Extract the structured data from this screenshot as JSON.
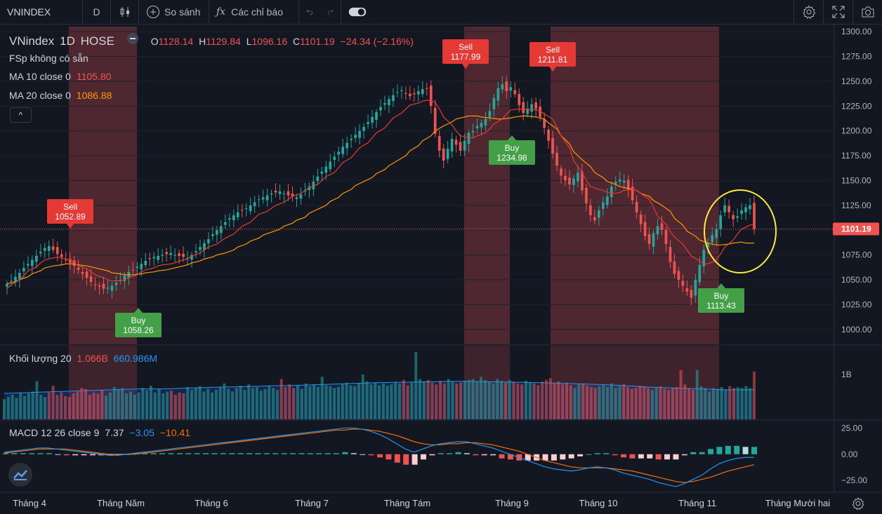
{
  "toolbar": {
    "symbol": "VNINDEX",
    "interval": "D",
    "compare_label": "So sánh",
    "indicators_label": "Các chỉ báo"
  },
  "legend": {
    "symbol": "VNindex",
    "interval": "1D",
    "exchange": "HOSE",
    "ohlc": {
      "o_label": "O",
      "o": "1128.14",
      "h_label": "H",
      "h": "1129.84",
      "l_label": "L",
      "l": "1096.16",
      "c_label": "C",
      "c": "1101.19",
      "chg": "−24.34 (−2.16%)"
    },
    "fsp": "FSp  không có sẵn",
    "ma10_label": "MA 10 close 0",
    "ma10_value": "1105.80",
    "ma20_label": "MA 20 close 0",
    "ma20_value": "1086.88",
    "collapse_glyph": "^"
  },
  "volume_legend": {
    "label": "Khối lượng 20",
    "v1": "1.066B",
    "v2": "660.986M"
  },
  "macd_legend": {
    "label": "MACD 12 26 close 9",
    "v1": "7.37",
    "v2": "−3.05",
    "v3": "−10.41"
  },
  "colors": {
    "up": "#26a69a",
    "down": "#ef5350",
    "bg": "#131722",
    "band": "#5b2a33",
    "ma10": "#e53935",
    "ma20": "#ff9800",
    "macd": "#2196f3",
    "signal": "#ff6d00",
    "buy": "#43a047",
    "sell": "#e53935",
    "circle": "#ffeb3b"
  },
  "chart_data": [
    {
      "type": "candlestick",
      "title": "VNindex · 1D · HOSE",
      "ylim": [
        985,
        1305
      ],
      "y_ticks": [
        "1300.00",
        "1275.00",
        "1250.00",
        "1225.00",
        "1200.00",
        "1175.00",
        "1150.00",
        "1125.00",
        "1100.00",
        "1075.00",
        "1050.00",
        "1025.00",
        "1000.00"
      ],
      "last_price": "1101.19",
      "x_ticks": [
        "Tháng 4",
        "Tháng Năm",
        "Tháng 6",
        "Tháng 7",
        "Tháng Tám",
        "Tháng 9",
        "Tháng 10",
        "Tháng 11",
        "Tháng Mười hai"
      ],
      "closes": [
        1046,
        1049,
        1053,
        1057,
        1062,
        1066,
        1070,
        1074,
        1078,
        1082,
        1084,
        1080,
        1076,
        1073,
        1070,
        1067,
        1064,
        1060,
        1056,
        1052,
        1048,
        1045,
        1043,
        1041,
        1042,
        1044,
        1047,
        1050,
        1054,
        1058,
        1060,
        1063,
        1066,
        1069,
        1071,
        1073,
        1074,
        1075,
        1076,
        1077,
        1075,
        1074,
        1073,
        1072,
        1075,
        1079,
        1083,
        1087,
        1091,
        1096,
        1100,
        1104,
        1108,
        1112,
        1115,
        1118,
        1120,
        1122,
        1125,
        1128,
        1131,
        1133,
        1135,
        1137,
        1138,
        1139,
        1137,
        1135,
        1134,
        1133,
        1136,
        1140,
        1144,
        1149,
        1154,
        1159,
        1164,
        1169,
        1174,
        1179,
        1184,
        1188,
        1192,
        1196,
        1200,
        1204,
        1209,
        1214,
        1219,
        1224,
        1228,
        1232,
        1236,
        1239,
        1241,
        1238,
        1235,
        1237,
        1240,
        1242,
        1243,
        1225,
        1197,
        1180,
        1170,
        1182,
        1192,
        1186,
        1180,
        1190,
        1198,
        1200,
        1205,
        1208,
        1212,
        1220,
        1233,
        1243,
        1247,
        1240,
        1244,
        1237,
        1226,
        1218,
        1222,
        1227,
        1222,
        1214,
        1203,
        1190,
        1177,
        1165,
        1155,
        1150,
        1146,
        1152,
        1158,
        1140,
        1127,
        1115,
        1110,
        1120,
        1128,
        1134,
        1144,
        1149,
        1151,
        1150,
        1141,
        1130,
        1118,
        1106,
        1094,
        1086,
        1097,
        1104,
        1100,
        1086,
        1068,
        1056,
        1050,
        1044,
        1038,
        1032,
        1050,
        1065,
        1080,
        1087,
        1095,
        1101,
        1115,
        1125,
        1118,
        1111,
        1114,
        1120,
        1123,
        1125,
        1101
      ],
      "ma10": [
        1041,
        1045,
        1050,
        1054,
        1059,
        1063,
        1067,
        1070,
        1072,
        1073,
        1072,
        1070,
        1067,
        1064,
        1061,
        1058,
        1055,
        1052,
        1050,
        1049,
        1049,
        1050,
        1052,
        1055,
        1058,
        1060,
        1062,
        1064,
        1065,
        1066,
        1067,
        1069,
        1071,
        1074,
        1077,
        1080,
        1083,
        1086,
        1089,
        1092,
        1096,
        1100,
        1104,
        1108,
        1112,
        1116,
        1119,
        1122,
        1125,
        1128,
        1131,
        1134,
        1137,
        1140,
        1143,
        1146,
        1150,
        1154,
        1158,
        1163,
        1168,
        1173,
        1178,
        1183,
        1188,
        1193,
        1198,
        1203,
        1208,
        1213,
        1218,
        1222,
        1226,
        1228,
        1230,
        1231,
        1229,
        1222,
        1214,
        1206,
        1200,
        1195,
        1193,
        1193,
        1195,
        1198,
        1202,
        1207,
        1212,
        1217,
        1221,
        1222,
        1222,
        1222,
        1221,
        1220,
        1217,
        1212,
        1204,
        1195,
        1183,
        1170,
        1158,
        1150,
        1144,
        1141,
        1140,
        1138,
        1137,
        1138,
        1140,
        1141,
        1140,
        1137,
        1131,
        1123,
        1114,
        1106,
        1099,
        1093,
        1086,
        1080,
        1074,
        1069,
        1066,
        1066,
        1070,
        1076,
        1083,
        1090,
        1096,
        1101,
        1105,
        1106
      ],
      "ma20": [
        1046,
        1048,
        1050,
        1053,
        1056,
        1059,
        1062,
        1064,
        1065,
        1066,
        1066,
        1065,
        1064,
        1063,
        1061,
        1059,
        1057,
        1056,
        1055,
        1055,
        1056,
        1057,
        1058,
        1059,
        1060,
        1061,
        1063,
        1065,
        1067,
        1069,
        1071,
        1073,
        1075,
        1077,
        1080,
        1083,
        1086,
        1089,
        1092,
        1095,
        1098,
        1101,
        1104,
        1107,
        1110,
        1113,
        1117,
        1121,
        1125,
        1129,
        1133,
        1137,
        1141,
        1145,
        1149,
        1153,
        1157,
        1161,
        1165,
        1170,
        1175,
        1180,
        1185,
        1190,
        1195,
        1200,
        1205,
        1209,
        1212,
        1214,
        1215,
        1215,
        1214,
        1213,
        1212,
        1212,
        1213,
        1214,
        1215,
        1215,
        1214,
        1212,
        1208,
        1202,
        1195,
        1187,
        1179,
        1171,
        1164,
        1158,
        1153,
        1149,
        1146,
        1144,
        1142,
        1140,
        1137,
        1134,
        1130,
        1125,
        1119,
        1112,
        1105,
        1099,
        1094,
        1090,
        1087,
        1085,
        1085,
        1086,
        1087,
        1088,
        1087,
        1087
      ],
      "signals": [
        {
          "type": "Sell",
          "label": "Sell",
          "price": "1052.89"
        },
        {
          "type": "Buy",
          "label": "Buy",
          "price": "1058.26"
        },
        {
          "type": "Sell",
          "label": "Sell",
          "price": "1177.99"
        },
        {
          "type": "Buy",
          "label": "Buy",
          "price": "1234.98"
        },
        {
          "type": "Sell",
          "label": "Sell",
          "price": "1211.81"
        },
        {
          "type": "Buy",
          "label": "Buy",
          "price": "1113.43"
        }
      ]
    },
    {
      "type": "bar",
      "title": "Khối lượng 20",
      "y_ticks": [
        "1B"
      ],
      "values": [
        0.45,
        0.5,
        0.55,
        0.48,
        0.6,
        0.52,
        0.58,
        0.62,
        0.85,
        0.55,
        0.5,
        0.6,
        0.75,
        0.55,
        0.6,
        0.52,
        0.5,
        0.58,
        0.62,
        0.7,
        0.68,
        0.55,
        0.6,
        0.57,
        0.65,
        0.53,
        0.6,
        0.72,
        0.66,
        0.7,
        0.58,
        0.62,
        0.55,
        0.6,
        0.7,
        0.65,
        0.75,
        0.6,
        0.68,
        0.58,
        0.62,
        0.64,
        0.55,
        0.6,
        0.58,
        0.72,
        0.66,
        0.7,
        0.74,
        0.62,
        0.68,
        0.6,
        0.66,
        0.72,
        0.8,
        0.68,
        0.62,
        0.7,
        0.75,
        0.66,
        0.78,
        0.7,
        0.72,
        0.64,
        0.68,
        0.74,
        0.7,
        0.66,
        0.9,
        0.72,
        0.78,
        0.7,
        0.75,
        0.68,
        0.8,
        0.74,
        0.78,
        0.72,
        0.95,
        0.76,
        0.74,
        0.7,
        0.72,
        0.78,
        0.82,
        0.76,
        0.74,
        0.8,
        1.0,
        0.85,
        0.78,
        0.82,
        0.76,
        0.8,
        0.75,
        0.78,
        0.84,
        0.8,
        0.88,
        0.76,
        0.82,
        1.5,
        0.9,
        0.85,
        0.88,
        0.82,
        0.78,
        0.86,
        0.8,
        0.9,
        0.84,
        0.8,
        0.82,
        0.86,
        0.88,
        0.9,
        0.85,
        0.95,
        0.88,
        0.84,
        0.8,
        0.9,
        0.86,
        0.82,
        0.88,
        0.84,
        0.8,
        0.78,
        0.86,
        0.82,
        0.8,
        0.76,
        0.84,
        0.88,
        0.92,
        0.8,
        0.85,
        0.78,
        0.82,
        0.76,
        0.7,
        0.78,
        0.8,
        0.75,
        0.72,
        0.7,
        0.74,
        0.76,
        0.72,
        0.8,
        0.7,
        0.74,
        0.78,
        0.72,
        0.68,
        0.7,
        0.75,
        0.72,
        0.7,
        0.66,
        0.72,
        0.74,
        0.68,
        0.66,
        0.7,
        0.72,
        1.1,
        0.78,
        0.7,
        0.66,
        1.1,
        0.74,
        0.7,
        0.62,
        0.7,
        0.68,
        0.72,
        0.66,
        0.74,
        0.7,
        0.72,
        0.7,
        0.74,
        0.7,
        1.066
      ],
      "ma": [
        0.58,
        0.6,
        0.62,
        0.64,
        0.66,
        0.68,
        0.68,
        0.7,
        0.72,
        0.73,
        0.75,
        0.76,
        0.78,
        0.8,
        0.82,
        0.83,
        0.84,
        0.85,
        0.84,
        0.83,
        0.82,
        0.8,
        0.78,
        0.76,
        0.72,
        0.7,
        0.68,
        0.66,
        0.66
      ]
    },
    {
      "type": "line",
      "title": "MACD 12 26 close 9",
      "ylim": [
        -35,
        32
      ],
      "y_ticks": [
        "25.00",
        "0.00",
        "−25.00"
      ],
      "macd": [
        2,
        3,
        4,
        5,
        6,
        6,
        5,
        4,
        3,
        2,
        1,
        0,
        -1,
        -1,
        0,
        1,
        2,
        3,
        4,
        5,
        6,
        7,
        8,
        9,
        10,
        11,
        12,
        13,
        14,
        15,
        16,
        17,
        18,
        19,
        20,
        21,
        22,
        23,
        24,
        25,
        25,
        24,
        22,
        19,
        15,
        10,
        5,
        2,
        5,
        8,
        10,
        11,
        12,
        12,
        10,
        8,
        6,
        3,
        0,
        -3,
        -6,
        -9,
        -12,
        -14,
        -15,
        -16,
        -15,
        -13,
        -12,
        -13,
        -15,
        -18,
        -20,
        -22,
        -24,
        -27,
        -29,
        -31,
        -28,
        -24,
        -20,
        -14,
        -9,
        -6,
        -4,
        -3,
        -3
      ],
      "signal": [
        1,
        2,
        3,
        4,
        5,
        5,
        5,
        5,
        4,
        3,
        2,
        1,
        0,
        0,
        0,
        0,
        1,
        2,
        3,
        4,
        5,
        6,
        7,
        8,
        9,
        10,
        11,
        12,
        13,
        14,
        15,
        16,
        17,
        18,
        19,
        20,
        21,
        22,
        23,
        23,
        24,
        24,
        23,
        22,
        20,
        18,
        15,
        12,
        10,
        9,
        9,
        10,
        10,
        11,
        11,
        10,
        9,
        7,
        5,
        3,
        0,
        -3,
        -6,
        -8,
        -10,
        -12,
        -13,
        -13,
        -13,
        -13,
        -14,
        -15,
        -16,
        -18,
        -20,
        -22,
        -24,
        -26,
        -27,
        -26,
        -24,
        -22,
        -19,
        -16,
        -14,
        -12,
        -10
      ],
      "histogram": [
        1,
        1,
        1,
        1,
        1,
        1,
        0,
        -1,
        -1,
        -1,
        -1,
        -1,
        -1,
        -1,
        0,
        1,
        1,
        1,
        1,
        1,
        1,
        1,
        1,
        1,
        1,
        1,
        1,
        1,
        1,
        1,
        1,
        1,
        1,
        1,
        1,
        1,
        1,
        1,
        1,
        2,
        1,
        0,
        -1,
        -3,
        -5,
        -8,
        -10,
        -10,
        -5,
        -1,
        1,
        1,
        2,
        1,
        -1,
        -1,
        -1,
        -4,
        -5,
        -6,
        -6,
        -6,
        -6,
        -6,
        -5,
        -4,
        -2,
        0,
        1,
        1,
        -1,
        -3,
        -4,
        -4,
        -4,
        -5,
        -5,
        -5,
        -1,
        2,
        2,
        5,
        7,
        8,
        8,
        7,
        7
      ]
    }
  ]
}
